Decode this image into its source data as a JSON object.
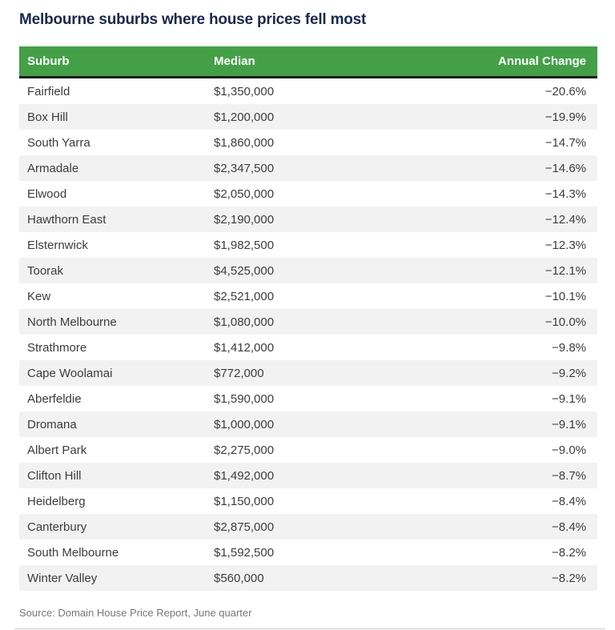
{
  "title": "Melbourne suburbs where house prices fell most",
  "chart_data": {
    "type": "table",
    "title": "Melbourne suburbs where house prices fell most",
    "columns": [
      "Suburb",
      "Median",
      "Annual Change"
    ],
    "rows": [
      {
        "suburb": "Fairfield",
        "median_value": 1350000,
        "median_display": "$1,350,000",
        "change_value": -20.6,
        "change_display": "−20.6%"
      },
      {
        "suburb": "Box Hill",
        "median_value": 1200000,
        "median_display": "$1,200,000",
        "change_value": -19.9,
        "change_display": "−19.9%"
      },
      {
        "suburb": "South Yarra",
        "median_value": 1860000,
        "median_display": "$1,860,000",
        "change_value": -14.7,
        "change_display": "−14.7%"
      },
      {
        "suburb": "Armadale",
        "median_value": 2347500,
        "median_display": "$2,347,500",
        "change_value": -14.6,
        "change_display": "−14.6%"
      },
      {
        "suburb": "Elwood",
        "median_value": 2050000,
        "median_display": "$2,050,000",
        "change_value": -14.3,
        "change_display": "−14.3%"
      },
      {
        "suburb": "Hawthorn East",
        "median_value": 2190000,
        "median_display": "$2,190,000",
        "change_value": -12.4,
        "change_display": "−12.4%"
      },
      {
        "suburb": "Elsternwick",
        "median_value": 1982500,
        "median_display": "$1,982,500",
        "change_value": -12.3,
        "change_display": "−12.3%"
      },
      {
        "suburb": "Toorak",
        "median_value": 4525000,
        "median_display": "$4,525,000",
        "change_value": -12.1,
        "change_display": "−12.1%"
      },
      {
        "suburb": "Kew",
        "median_value": 2521000,
        "median_display": "$2,521,000",
        "change_value": -10.1,
        "change_display": "−10.1%"
      },
      {
        "suburb": "North Melbourne",
        "median_value": 1080000,
        "median_display": "$1,080,000",
        "change_value": -10.0,
        "change_display": "−10.0%"
      },
      {
        "suburb": "Strathmore",
        "median_value": 1412000,
        "median_display": "$1,412,000",
        "change_value": -9.8,
        "change_display": "−9.8%"
      },
      {
        "suburb": "Cape Woolamai",
        "median_value": 772000,
        "median_display": "$772,000",
        "change_value": -9.2,
        "change_display": "−9.2%"
      },
      {
        "suburb": "Aberfeldie",
        "median_value": 1590000,
        "median_display": "$1,590,000",
        "change_value": -9.1,
        "change_display": "−9.1%"
      },
      {
        "suburb": "Dromana",
        "median_value": 1000000,
        "median_display": "$1,000,000",
        "change_value": -9.1,
        "change_display": "−9.1%"
      },
      {
        "suburb": "Albert Park",
        "median_value": 2275000,
        "median_display": "$2,275,000",
        "change_value": -9.0,
        "change_display": "−9.0%"
      },
      {
        "suburb": "Clifton Hill",
        "median_value": 1492000,
        "median_display": "$1,492,000",
        "change_value": -8.7,
        "change_display": "−8.7%"
      },
      {
        "suburb": "Heidelberg",
        "median_value": 1150000,
        "median_display": "$1,150,000",
        "change_value": -8.4,
        "change_display": "−8.4%"
      },
      {
        "suburb": "Canterbury",
        "median_value": 2875000,
        "median_display": "$2,875,000",
        "change_value": -8.4,
        "change_display": "−8.4%"
      },
      {
        "suburb": "South Melbourne",
        "median_value": 1592500,
        "median_display": "$1,592,500",
        "change_value": -8.2,
        "change_display": "−8.2%"
      },
      {
        "suburb": "Winter Valley",
        "median_value": 560000,
        "median_display": "$560,000",
        "change_value": -8.2,
        "change_display": "−8.2%"
      }
    ],
    "source": "Source: Domain House Price Report, June quarter"
  },
  "colors": {
    "header_bg": "#43a047",
    "header_text": "#ffffff",
    "header_border": "#1c1c1c",
    "title_text": "#17294e",
    "body_text": "#3c3c3c",
    "row_stripe": "#f2f2f2",
    "source_text": "#777777",
    "divider": "#cccccc"
  }
}
